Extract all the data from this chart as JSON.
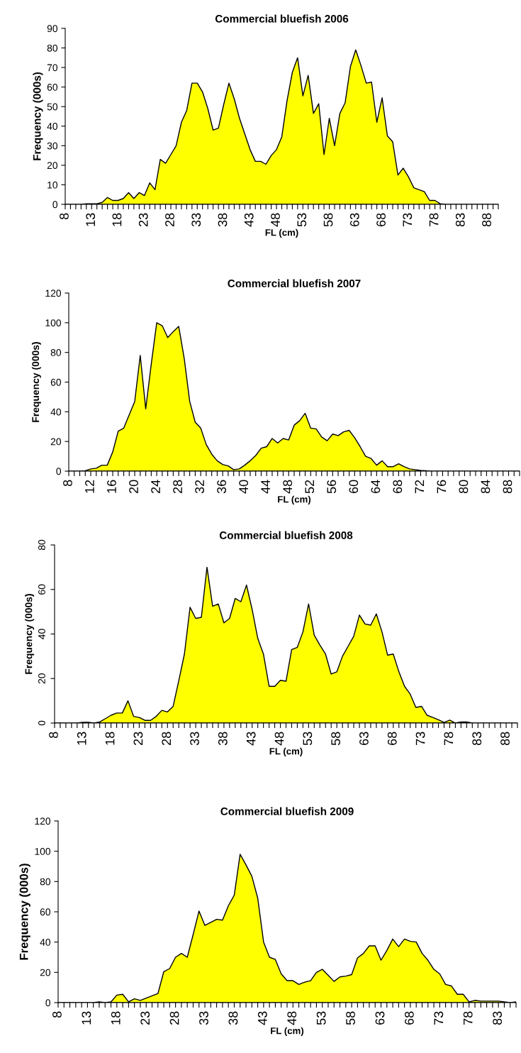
{
  "chart_data": [
    {
      "type": "area",
      "title": "Commercial bluefish 2006",
      "xlabel": "FL (cm)",
      "ylabel": "Frequency (000s)",
      "ylim": [
        0,
        90
      ],
      "yticks": [
        0,
        10,
        20,
        30,
        40,
        50,
        60,
        70,
        80,
        90
      ],
      "grid": false,
      "legend": false,
      "categories": [
        "8",
        null,
        null,
        null,
        null,
        "13",
        null,
        null,
        null,
        null,
        "18",
        null,
        null,
        null,
        null,
        "23",
        null,
        null,
        null,
        null,
        "28",
        null,
        null,
        null,
        null,
        "33",
        null,
        null,
        null,
        null,
        "38",
        null,
        null,
        null,
        null,
        "43",
        null,
        null,
        null,
        null,
        "48",
        null,
        null,
        null,
        null,
        "53",
        null,
        null,
        null,
        null,
        "58",
        null,
        null,
        null,
        null,
        "63",
        null,
        null,
        null,
        null,
        "68",
        null,
        null,
        null,
        null,
        "73",
        null,
        null,
        null,
        null,
        "78",
        null,
        null,
        null,
        null,
        "83",
        null,
        null,
        null,
        null,
        "88",
        null,
        null
      ],
      "series": [
        {
          "color": "#ffff00",
          "values": [
            0,
            0,
            0,
            0,
            0.3,
            0.3,
            0.3,
            1,
            3.5,
            2,
            2,
            3,
            6,
            3,
            6,
            4.5,
            11,
            7.5,
            23,
            21,
            25.5,
            30,
            42,
            48,
            62,
            62,
            57.5,
            49,
            38,
            39,
            51,
            62,
            54,
            44,
            36,
            28,
            22,
            22,
            20.5,
            25,
            28,
            34.5,
            53,
            67.5,
            75,
            55.5,
            66,
            46.5,
            51.5,
            25.5,
            44,
            30,
            46.5,
            52,
            70.5,
            79,
            71,
            62,
            62.5,
            42,
            54.5,
            35,
            32,
            15,
            18.5,
            14,
            8.5,
            7.5,
            6.5,
            2,
            2,
            0.3,
            0,
            0,
            0,
            0,
            0,
            0,
            0,
            0,
            0,
            0,
            0
          ]
        }
      ]
    },
    {
      "type": "area",
      "title": "Commercial bluefish 2007",
      "xlabel": "FL (cm)",
      "ylabel": "Frequency (000s)",
      "ylim": [
        0,
        120
      ],
      "yticks": [
        0,
        20,
        40,
        60,
        80,
        100,
        120
      ],
      "grid": false,
      "legend": false,
      "categories": [
        "8",
        null,
        null,
        null,
        "12",
        null,
        null,
        null,
        "16",
        null,
        null,
        null,
        "20",
        null,
        null,
        null,
        "24",
        null,
        null,
        null,
        "28",
        null,
        null,
        null,
        "32",
        null,
        null,
        null,
        "36",
        null,
        null,
        null,
        "40",
        null,
        null,
        null,
        "44",
        null,
        null,
        null,
        "48",
        null,
        null,
        null,
        "52",
        null,
        null,
        null,
        "56",
        null,
        null,
        null,
        "60",
        null,
        null,
        null,
        "64",
        null,
        null,
        null,
        "68",
        null,
        null,
        null,
        "72",
        null,
        null,
        null,
        "76",
        null,
        null,
        null,
        "80",
        null,
        null,
        null,
        "84",
        null,
        null,
        null,
        "88",
        null,
        null
      ],
      "series": [
        {
          "color": "#ffff00",
          "values": [
            0,
            0,
            0,
            0.3,
            1.5,
            2,
            4,
            4,
            13,
            27,
            29,
            38,
            47,
            78,
            42,
            72,
            100,
            98,
            90,
            94,
            97.5,
            76,
            47,
            33,
            29,
            18,
            11.5,
            7,
            4.5,
            3.5,
            1,
            1.5,
            4,
            7,
            10.5,
            15.5,
            16.5,
            22,
            19,
            22,
            21,
            31,
            34,
            39,
            29,
            28.5,
            23,
            20.5,
            25,
            24,
            26.5,
            27.5,
            22.5,
            16.5,
            10,
            8.5,
            4,
            7,
            3,
            3,
            5,
            3,
            1.5,
            1,
            0.5,
            0.3,
            0,
            0,
            0,
            0,
            0,
            0,
            0,
            0,
            0,
            0,
            0,
            0,
            0,
            0,
            0,
            0,
            0
          ]
        }
      ]
    },
    {
      "type": "area",
      "title": "Commercial bluefish 2008",
      "xlabel": "FL (cm)",
      "ylabel": "Frequency (000s)",
      "ylim": [
        0,
        80
      ],
      "yticks": [
        0,
        20,
        40,
        60,
        80
      ],
      "grid": false,
      "legend": false,
      "categories": [
        "8",
        null,
        null,
        null,
        null,
        "13",
        null,
        null,
        null,
        null,
        "18",
        null,
        null,
        null,
        null,
        "23",
        null,
        null,
        null,
        null,
        "28",
        null,
        null,
        null,
        null,
        "33",
        null,
        null,
        null,
        null,
        "38",
        null,
        null,
        null,
        null,
        "43",
        null,
        null,
        null,
        null,
        "48",
        null,
        null,
        null,
        null,
        "53",
        null,
        null,
        null,
        null,
        "58",
        null,
        null,
        null,
        null,
        "63",
        null,
        null,
        null,
        null,
        "68",
        null,
        null,
        null,
        null,
        "73",
        null,
        null,
        null,
        null,
        "78",
        null,
        null,
        null,
        null,
        "83",
        null,
        null,
        null,
        null,
        "88",
        null,
        null
      ],
      "series": [
        {
          "color": "#ffff00",
          "values": [
            0,
            0,
            0,
            0,
            0,
            0.3,
            0.3,
            0,
            0.5,
            2,
            3.5,
            4.5,
            4.5,
            10,
            3,
            2.5,
            1.2,
            1.2,
            3,
            5.7,
            5,
            7.5,
            19,
            31,
            52,
            47,
            47.5,
            70,
            52.5,
            53.5,
            45,
            47,
            56,
            54.5,
            62,
            51,
            38,
            31,
            16.5,
            16.5,
            19.2,
            18.8,
            33,
            34,
            41,
            53.5,
            39.5,
            35,
            31,
            22,
            23,
            30,
            34.5,
            39,
            48.5,
            44.5,
            44,
            49,
            41,
            30.5,
            31,
            23,
            16.5,
            13,
            7,
            7.5,
            3.5,
            2.5,
            1.5,
            0.3,
            1.3,
            0,
            0.5,
            0.5,
            0,
            0,
            0,
            0,
            0,
            0,
            0,
            0,
            0
          ]
        }
      ]
    },
    {
      "type": "area",
      "title": "Commercial bluefish 2009",
      "xlabel": "FL (cm)",
      "ylabel": "Frequency (000s)",
      "ylim": [
        0,
        120
      ],
      "yticks": [
        0,
        20,
        40,
        60,
        80,
        100,
        120
      ],
      "grid": false,
      "legend": false,
      "categories": [
        "8",
        null,
        null,
        null,
        null,
        "13",
        null,
        null,
        null,
        null,
        "18",
        null,
        null,
        null,
        null,
        "23",
        null,
        null,
        null,
        null,
        "28",
        null,
        null,
        null,
        null,
        "33",
        null,
        null,
        null,
        null,
        "38",
        null,
        null,
        null,
        null,
        "43",
        null,
        null,
        null,
        null,
        "48",
        null,
        null,
        null,
        null,
        "53",
        null,
        null,
        null,
        null,
        "58",
        null,
        null,
        null,
        null,
        "63",
        null,
        null,
        null,
        null,
        "68",
        null,
        null,
        null,
        null,
        "73",
        null,
        null,
        null,
        null,
        "78",
        null,
        null,
        null,
        null,
        "83",
        null,
        null,
        null
      ],
      "series": [
        {
          "color": "#ffff00",
          "values": [
            0,
            0,
            0,
            0,
            0,
            0,
            0,
            0.5,
            0,
            0.5,
            5,
            5.5,
            0.5,
            2.5,
            1.5,
            3,
            4.5,
            6,
            20.5,
            22.5,
            30,
            32.5,
            30,
            45,
            60.5,
            51,
            53,
            55,
            54.5,
            64,
            71,
            98,
            91,
            83.5,
            69,
            40,
            30,
            28.5,
            19,
            14.5,
            14.5,
            12,
            13.5,
            14.5,
            20,
            22,
            18,
            14,
            17,
            17.5,
            18.5,
            29.5,
            32.5,
            37.5,
            37.5,
            28,
            34.5,
            42,
            37,
            42,
            40.5,
            40,
            32.5,
            28,
            22,
            19,
            12,
            11,
            5.5,
            5.5,
            0.5,
            1.5,
            1,
            1,
            1,
            1,
            0.5,
            0,
            0.5
          ]
        }
      ]
    }
  ]
}
